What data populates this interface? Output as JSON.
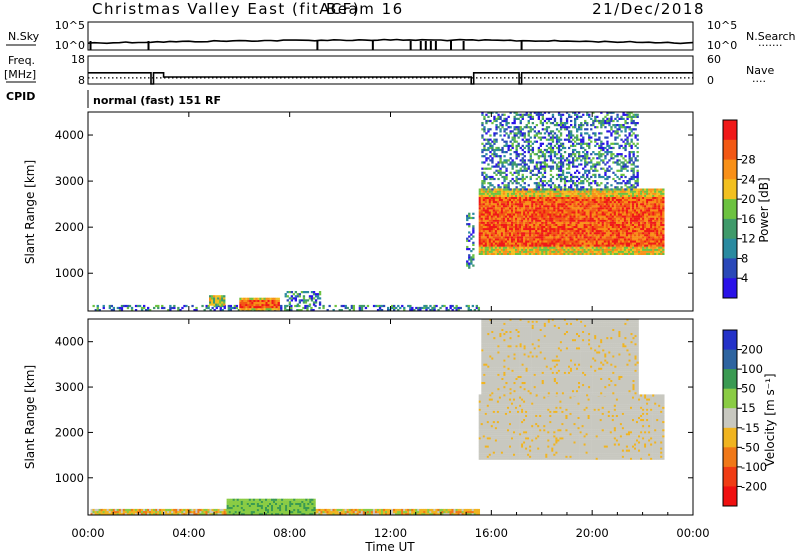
{
  "header": {
    "station": "Christmas Valley East (fitACF)",
    "beam": "Beam 16",
    "date": "21/Dec/2018"
  },
  "sky_panel": {
    "left_label": "N.Sky",
    "left_ticks": [
      "10^5",
      "10^0"
    ],
    "right_ticks": [
      "10^5",
      "10^0"
    ],
    "right_label": "N.Search",
    "right_legend": "......."
  },
  "freq_panel": {
    "left_label_1": "Freq.",
    "left_label_2": "[MHz]",
    "left_ticks": [
      "18",
      "8"
    ],
    "right_ticks": [
      "60",
      "0"
    ],
    "right_label": "Nave",
    "right_legend": "...."
  },
  "cpid_panel": {
    "label": "CPID",
    "mode": "normal (fast) 151 RF"
  },
  "time_axis": {
    "ticks": [
      "00:00",
      "04:00",
      "08:00",
      "12:00",
      "16:00",
      "20:00",
      "00:00"
    ],
    "label": "Time UT"
  },
  "chart_data": [
    {
      "type": "heatmap",
      "panel": "power",
      "ylabel": "Slant Range [km]",
      "yticks": [
        "1000",
        "2000",
        "3000",
        "4000"
      ],
      "ylim": [
        180,
        4500
      ],
      "xlim_hours": [
        0,
        24
      ],
      "colorbar": {
        "label": "Power [dB]",
        "ticks": [
          "4",
          "8",
          "12",
          "16",
          "20",
          "24",
          "28"
        ],
        "colors": [
          "#2a12e8",
          "#2a48b8",
          "#2a8aa0",
          "#3f9a6a",
          "#6cc240",
          "#f2c020",
          "#f89018",
          "#f25814",
          "#f01818"
        ]
      },
      "regions": [
        {
          "t": [
            0.1,
            15.5
          ],
          "range": [
            180,
            300
          ],
          "level": "low"
        },
        {
          "t": [
            4.8,
            5.4
          ],
          "range": [
            300,
            500
          ],
          "level": "medium"
        },
        {
          "t": [
            6.0,
            7.6
          ],
          "range": [
            200,
            450
          ],
          "level": "high"
        },
        {
          "t": [
            7.8,
            9.2
          ],
          "range": [
            300,
            600
          ],
          "level": "low"
        },
        {
          "t": [
            15.0,
            15.3
          ],
          "range": [
            1100,
            2300
          ],
          "level": "low"
        },
        {
          "t": [
            15.5,
            22.8
          ],
          "range": [
            1400,
            2800
          ],
          "level": "high"
        },
        {
          "t": [
            15.6,
            21.8
          ],
          "range": [
            2800,
            4500
          ],
          "level": "low"
        }
      ]
    },
    {
      "type": "heatmap",
      "panel": "velocity",
      "ylabel": "Slant Range [km]",
      "yticks": [
        "1000",
        "2000",
        "3000",
        "4000"
      ],
      "ylim": [
        180,
        4500
      ],
      "xlim_hours": [
        0,
        24
      ],
      "colorbar": {
        "label": "Velocity [m s⁻¹]",
        "ticks": [
          "200",
          "100",
          "50",
          "15",
          "-15",
          "-50",
          "-100",
          "-200"
        ],
        "colors": [
          "#2432c8",
          "#2e64a0",
          "#3a9a52",
          "#8acc44",
          "#c8c8c0",
          "#f0b420",
          "#f07818",
          "#f03c14",
          "#f01010"
        ]
      },
      "regions": [
        {
          "t": [
            0.1,
            15.5
          ],
          "range": [
            180,
            300
          ],
          "level": "mixed"
        },
        {
          "t": [
            5.5,
            9.0
          ],
          "range": [
            180,
            500
          ],
          "level": "positive"
        },
        {
          "t": [
            15.5,
            22.8
          ],
          "range": [
            1400,
            2800
          ],
          "level": "near-zero"
        },
        {
          "t": [
            15.6,
            21.8
          ],
          "range": [
            2800,
            4500
          ],
          "level": "near-zero"
        }
      ]
    }
  ]
}
